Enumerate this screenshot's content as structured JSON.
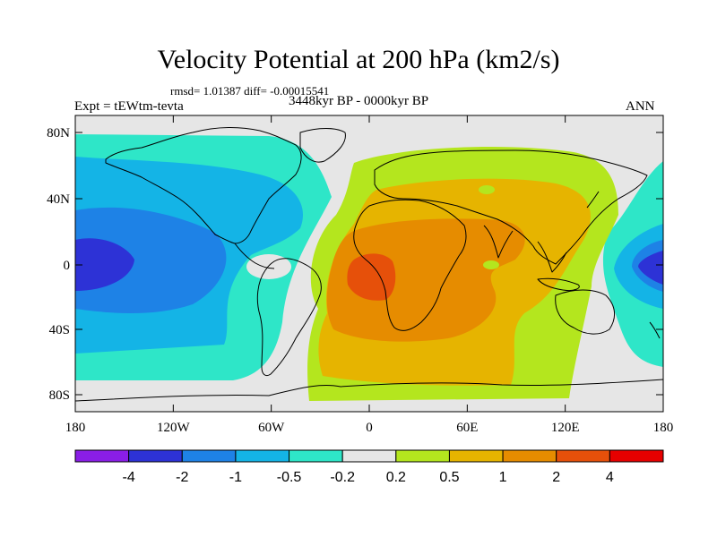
{
  "title": "Velocity Potential at 200 hPa (km2/s)",
  "stats": "rmsd= 1.01387  diff= -0.00015541",
  "left_label": "Expt = tEWtm-tevta",
  "center_label": "3448kyr BP - 0000kyr BP",
  "right_label": "ANN",
  "lat_ticks": [
    "80N",
    "40N",
    "0",
    "40S",
    "80S"
  ],
  "lon_ticks": [
    "180",
    "120W",
    "60W",
    "0",
    "60E",
    "120E",
    "180"
  ],
  "colorbar": {
    "colors": [
      "#8a1ee6",
      "#2d32d6",
      "#1e82e6",
      "#14b4e6",
      "#2ee6c8",
      "#e6e6e6",
      "#b4e61e",
      "#e6b400",
      "#e68c00",
      "#e6500a",
      "#e60000"
    ],
    "labels": [
      "-4",
      "-2",
      "-1",
      "-0.5",
      "-0.2",
      "0.2",
      "0.5",
      "1",
      "2",
      "4"
    ]
  }
}
